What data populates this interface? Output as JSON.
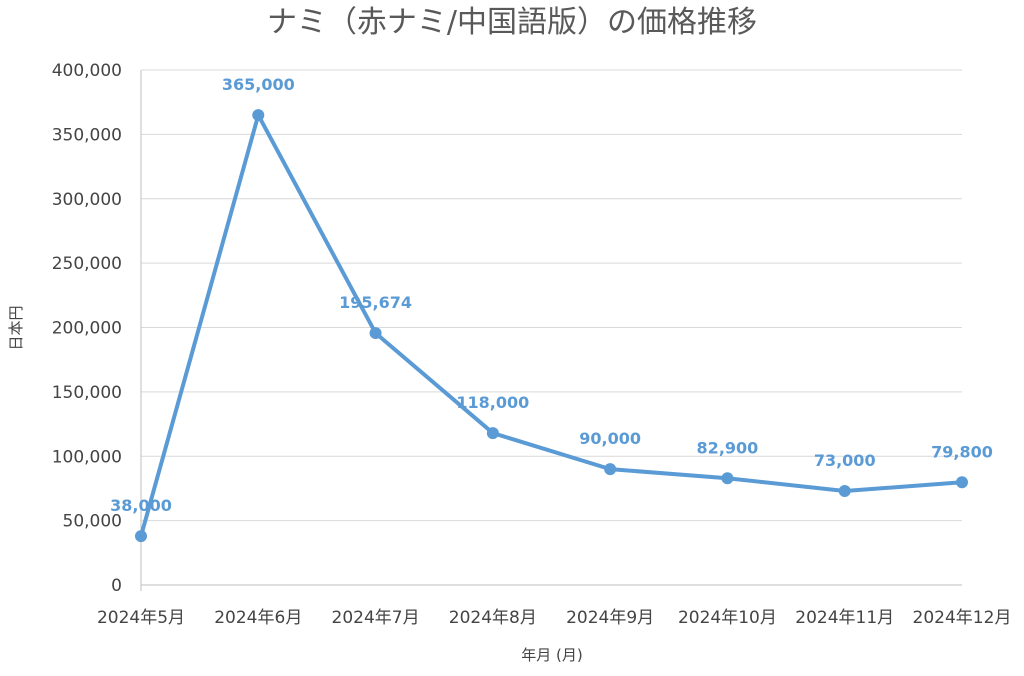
{
  "chart_data": {
    "type": "line",
    "title": "ナミ（赤ナミ/中国語版）の価格推移",
    "xlabel": "年月 (月)",
    "ylabel": "日本円",
    "categories": [
      "2024年5月",
      "2024年6月",
      "2024年7月",
      "2024年8月",
      "2024年9月",
      "2024年10月",
      "2024年11月",
      "2024年12月"
    ],
    "series": [
      {
        "values": [
          38000,
          365000,
          195674,
          118000,
          90000,
          82900,
          73000,
          79800
        ],
        "labels": [
          "38,000",
          "365,000",
          "195,674",
          "118,000",
          "90,000",
          "82,900",
          "73,000",
          "79,800"
        ]
      }
    ],
    "ylim": [
      0,
      400000
    ],
    "yticks": [
      0,
      50000,
      100000,
      150000,
      200000,
      250000,
      300000,
      350000,
      400000
    ],
    "ytick_labels": [
      "0",
      "50,000",
      "100,000",
      "150,000",
      "200,000",
      "250,000",
      "300,000",
      "350,000",
      "400,000"
    ],
    "grid": true,
    "legend": "none",
    "colors": {
      "series": "#5b9bd5"
    }
  }
}
